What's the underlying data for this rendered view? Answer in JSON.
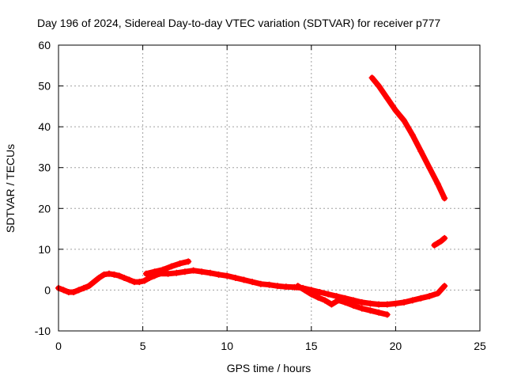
{
  "chart_data": {
    "type": "scatter",
    "title": "Day 196 of 2024, Sidereal Day-to-day VTEC variation (SDTVAR) for receiver p777",
    "xlabel": "GPS time / hours",
    "ylabel": "SDTVAR / TECUs",
    "xlim": [
      0,
      25
    ],
    "ylim": [
      -10,
      60
    ],
    "xticks": [
      0,
      5,
      10,
      15,
      20,
      25
    ],
    "yticks": [
      -10,
      0,
      10,
      20,
      30,
      40,
      50,
      60
    ],
    "grid": true,
    "legend": "none",
    "marker_color": "#ff0000",
    "series": [
      {
        "name": "main-track",
        "x": [
          0.0,
          0.3,
          0.6,
          0.9,
          1.2,
          1.5,
          1.8,
          2.1,
          2.4,
          2.7,
          3.0,
          3.3,
          3.6,
          3.9,
          4.2,
          4.5,
          4.8,
          5.1,
          5.4,
          5.7,
          6.0,
          6.5,
          7.0,
          7.5,
          8.0,
          8.5,
          9.0,
          9.5,
          10.0,
          10.5,
          11.0,
          11.5,
          12.0,
          12.5,
          13.0,
          13.5,
          14.0,
          14.5,
          15.0,
          15.5,
          16.0,
          16.5,
          17.0,
          17.5,
          18.0,
          18.5,
          19.0,
          19.5,
          20.0,
          20.5,
          21.0,
          21.5,
          22.0,
          22.5,
          22.9
        ],
        "y": [
          0.5,
          0,
          -0.5,
          -0.5,
          0,
          0.5,
          1,
          2,
          3,
          3.8,
          4,
          3.8,
          3.5,
          3,
          2.5,
          2,
          2,
          2.3,
          3,
          3.5,
          4,
          4,
          4.2,
          4.5,
          4.8,
          4.5,
          4.2,
          3.8,
          3.5,
          3,
          2.5,
          2,
          1.5,
          1.3,
          1,
          0.8,
          0.7,
          0.5,
          0,
          -0.5,
          -1,
          -1.5,
          -2,
          -2.5,
          -3,
          -3.3,
          -3.5,
          -3.5,
          -3.3,
          -3,
          -2.5,
          -2,
          -1.5,
          -0.8,
          1
        ]
      },
      {
        "name": "upper-branch",
        "x": [
          5.2,
          5.7,
          6.2,
          6.7,
          7.2,
          7.7
        ],
        "y": [
          4,
          4.5,
          5,
          5.8,
          6.5,
          7
        ]
      },
      {
        "name": "descending-branch",
        "x": [
          14.2,
          14.6,
          15.0,
          15.4,
          15.8,
          16.2,
          16.6,
          17.0,
          17.5,
          18.0,
          18.5,
          19.0,
          19.5
        ],
        "y": [
          1,
          0,
          -1,
          -1.8,
          -2.5,
          -3.5,
          -2.5,
          -3,
          -3.8,
          -4.5,
          -5,
          -5.5,
          -6
        ]
      },
      {
        "name": "high-track",
        "x": [
          18.6,
          19.0,
          19.5,
          20.0,
          20.5,
          21.0,
          21.5,
          22.0,
          22.5,
          22.9
        ],
        "y": [
          52,
          50,
          47,
          44,
          41.5,
          38,
          34,
          30,
          26,
          22.5
        ]
      },
      {
        "name": "short-segment",
        "x": [
          22.3,
          22.5,
          22.7,
          22.9
        ],
        "y": [
          11,
          11.5,
          12,
          12.7
        ]
      }
    ]
  }
}
